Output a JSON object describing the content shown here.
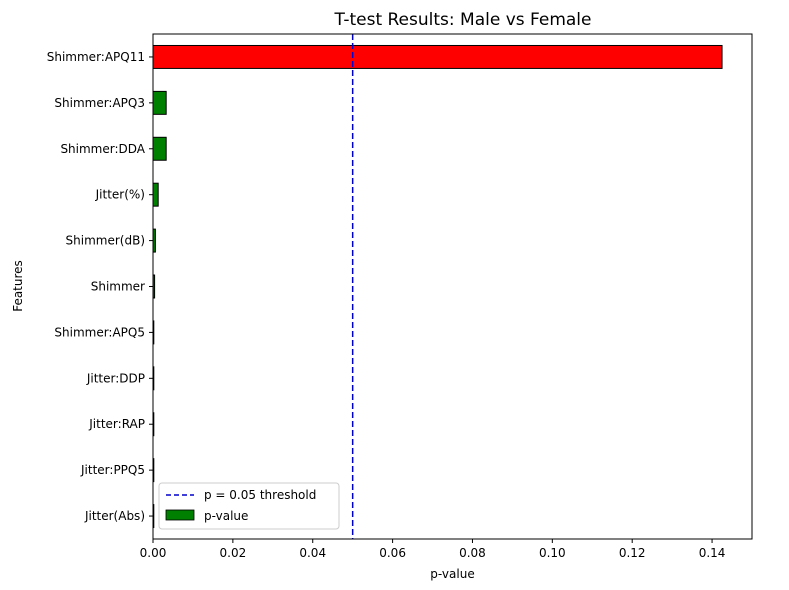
{
  "chart_data": {
    "type": "bar",
    "orientation": "horizontal",
    "title": "T-test Results: Male vs Female",
    "xlabel": "p-value",
    "ylabel": "Features",
    "xlim": [
      0.0,
      0.15
    ],
    "xticks": [
      0.0,
      0.02,
      0.04,
      0.06,
      0.08,
      0.1,
      0.12,
      0.14
    ],
    "xtick_labels": [
      "0.00",
      "0.02",
      "0.04",
      "0.06",
      "0.08",
      "0.10",
      "0.12",
      "0.14"
    ],
    "categories": [
      "Shimmer:APQ11",
      "Shimmer:APQ3",
      "Shimmer:DDA",
      "Jitter(%)",
      "Shimmer(dB)",
      "Shimmer",
      "Shimmer:APQ5",
      "Jitter:DDP",
      "Jitter:RAP",
      "Jitter:PPQ5",
      "Jitter(Abs)"
    ],
    "values": [
      0.1425,
      0.0033,
      0.0033,
      0.0013,
      0.0006,
      0.0004,
      0.0002,
      0.0001,
      0.0001,
      0.0001,
      5e-05
    ],
    "bar_colors": [
      "#ff0000",
      "#008000",
      "#008000",
      "#008000",
      "#008000",
      "#008000",
      "#008000",
      "#008000",
      "#008000",
      "#008000",
      "#008000"
    ],
    "threshold": {
      "value": 0.05,
      "label": "p = 0.05 threshold",
      "color": "#0000cc"
    },
    "legend": {
      "position": "lower-left",
      "entries": [
        {
          "label": "p = 0.05 threshold",
          "kind": "dashed-line",
          "color": "#0000cc"
        },
        {
          "label": "p-value",
          "kind": "patch",
          "color": "#008000"
        }
      ]
    },
    "grid": false
  }
}
